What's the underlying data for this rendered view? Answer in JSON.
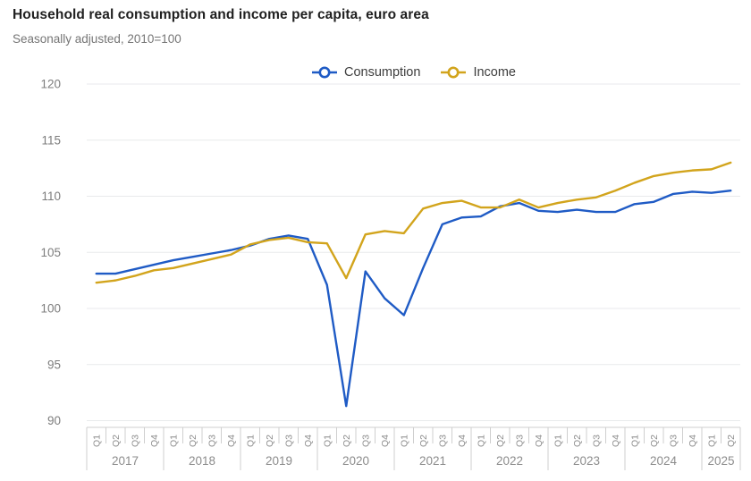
{
  "header": {
    "title": "Household real consumption and income per capita, euro area",
    "subtitle": "Seasonally adjusted, 2010=100"
  },
  "legend": {
    "items": [
      {
        "label": "Consumption",
        "color": "#1f5bc5",
        "marker": "open-circle-on-line"
      },
      {
        "label": "Income",
        "color": "#d2a41c",
        "marker": "open-circle-on-line"
      }
    ]
  },
  "chart_data": {
    "type": "line",
    "title": "Household real consumption and income per capita, euro area",
    "subtitle": "Seasonally adjusted, 2010=100",
    "xlabel": "",
    "ylabel": "",
    "ylim": [
      90,
      120
    ],
    "yticks": [
      90,
      95,
      100,
      105,
      110,
      115,
      120
    ],
    "grid": "horizontal",
    "legend_position": "top-center",
    "x_axis_style": "grid-band-with-quarter-and-year-rows",
    "years": [
      {
        "label": "2017",
        "quarters": [
          "Q1",
          "Q2",
          "Q3",
          "Q4"
        ]
      },
      {
        "label": "2018",
        "quarters": [
          "Q1",
          "Q2",
          "Q3",
          "Q4"
        ]
      },
      {
        "label": "2019",
        "quarters": [
          "Q1",
          "Q2",
          "Q3",
          "Q4"
        ]
      },
      {
        "label": "2020",
        "quarters": [
          "Q1",
          "Q2",
          "Q3",
          "Q4"
        ]
      },
      {
        "label": "2021",
        "quarters": [
          "Q1",
          "Q2",
          "Q3",
          "Q4"
        ]
      },
      {
        "label": "2022",
        "quarters": [
          "Q1",
          "Q2",
          "Q3",
          "Q4"
        ]
      },
      {
        "label": "2023",
        "quarters": [
          "Q1",
          "Q2",
          "Q3",
          "Q4"
        ]
      },
      {
        "label": "2024",
        "quarters": [
          "Q1",
          "Q2",
          "Q3",
          "Q4"
        ]
      },
      {
        "label": "2025",
        "quarters": [
          "Q1",
          "Q2"
        ]
      }
    ],
    "series": [
      {
        "name": "Consumption",
        "color": "#1f5bc5",
        "values": [
          103.1,
          103.1,
          103.5,
          103.9,
          104.3,
          104.6,
          104.9,
          105.2,
          105.6,
          106.2,
          106.5,
          106.2,
          102.1,
          91.3,
          103.3,
          100.9,
          99.4,
          103.6,
          107.5,
          108.1,
          108.2,
          109.1,
          109.4,
          108.7,
          108.6,
          108.8,
          108.6,
          108.6,
          109.3,
          109.5,
          110.2,
          110.4,
          110.3,
          110.5
        ]
      },
      {
        "name": "Income",
        "color": "#d2a41c",
        "values": [
          102.3,
          102.5,
          102.9,
          103.4,
          103.6,
          104.0,
          104.4,
          104.8,
          105.7,
          106.1,
          106.3,
          105.9,
          105.8,
          102.7,
          106.6,
          106.9,
          106.7,
          108.9,
          109.4,
          109.6,
          109.0,
          109.0,
          109.7,
          109.0,
          109.4,
          109.7,
          109.9,
          110.5,
          111.2,
          111.8,
          112.1,
          112.3,
          112.4,
          113.0
        ]
      }
    ]
  }
}
